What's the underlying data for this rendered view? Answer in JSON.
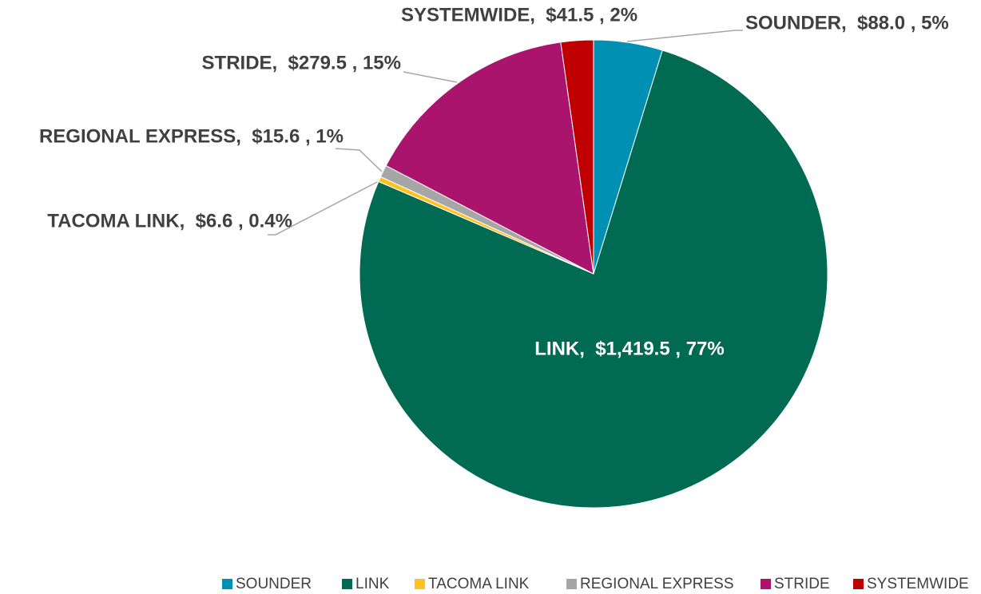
{
  "chart_data": {
    "type": "pie",
    "categories": [
      "SOUNDER",
      "LINK",
      "TACOMA LINK",
      "REGIONAL EXPRESS",
      "STRIDE",
      "SYSTEMWIDE"
    ],
    "values": [
      88.0,
      1419.5,
      6.6,
      15.6,
      279.5,
      41.5
    ],
    "value_labels": [
      "SOUNDER,  $88.0 , 5%",
      "LINK,  $1,419.5 , 77%",
      "TACOMA LINK,  $6.6 , 0.4%",
      "REGIONAL EXPRESS,  $15.6 , 1%",
      "STRIDE,  $279.5 , 15%",
      "SYSTEMWIDE,  $41.5 , 2%"
    ],
    "colors": [
      "#0090b4",
      "#006a53",
      "#ffc222",
      "#a6a6a6",
      "#ab146d",
      "#c00000"
    ],
    "legend": "bottom"
  }
}
